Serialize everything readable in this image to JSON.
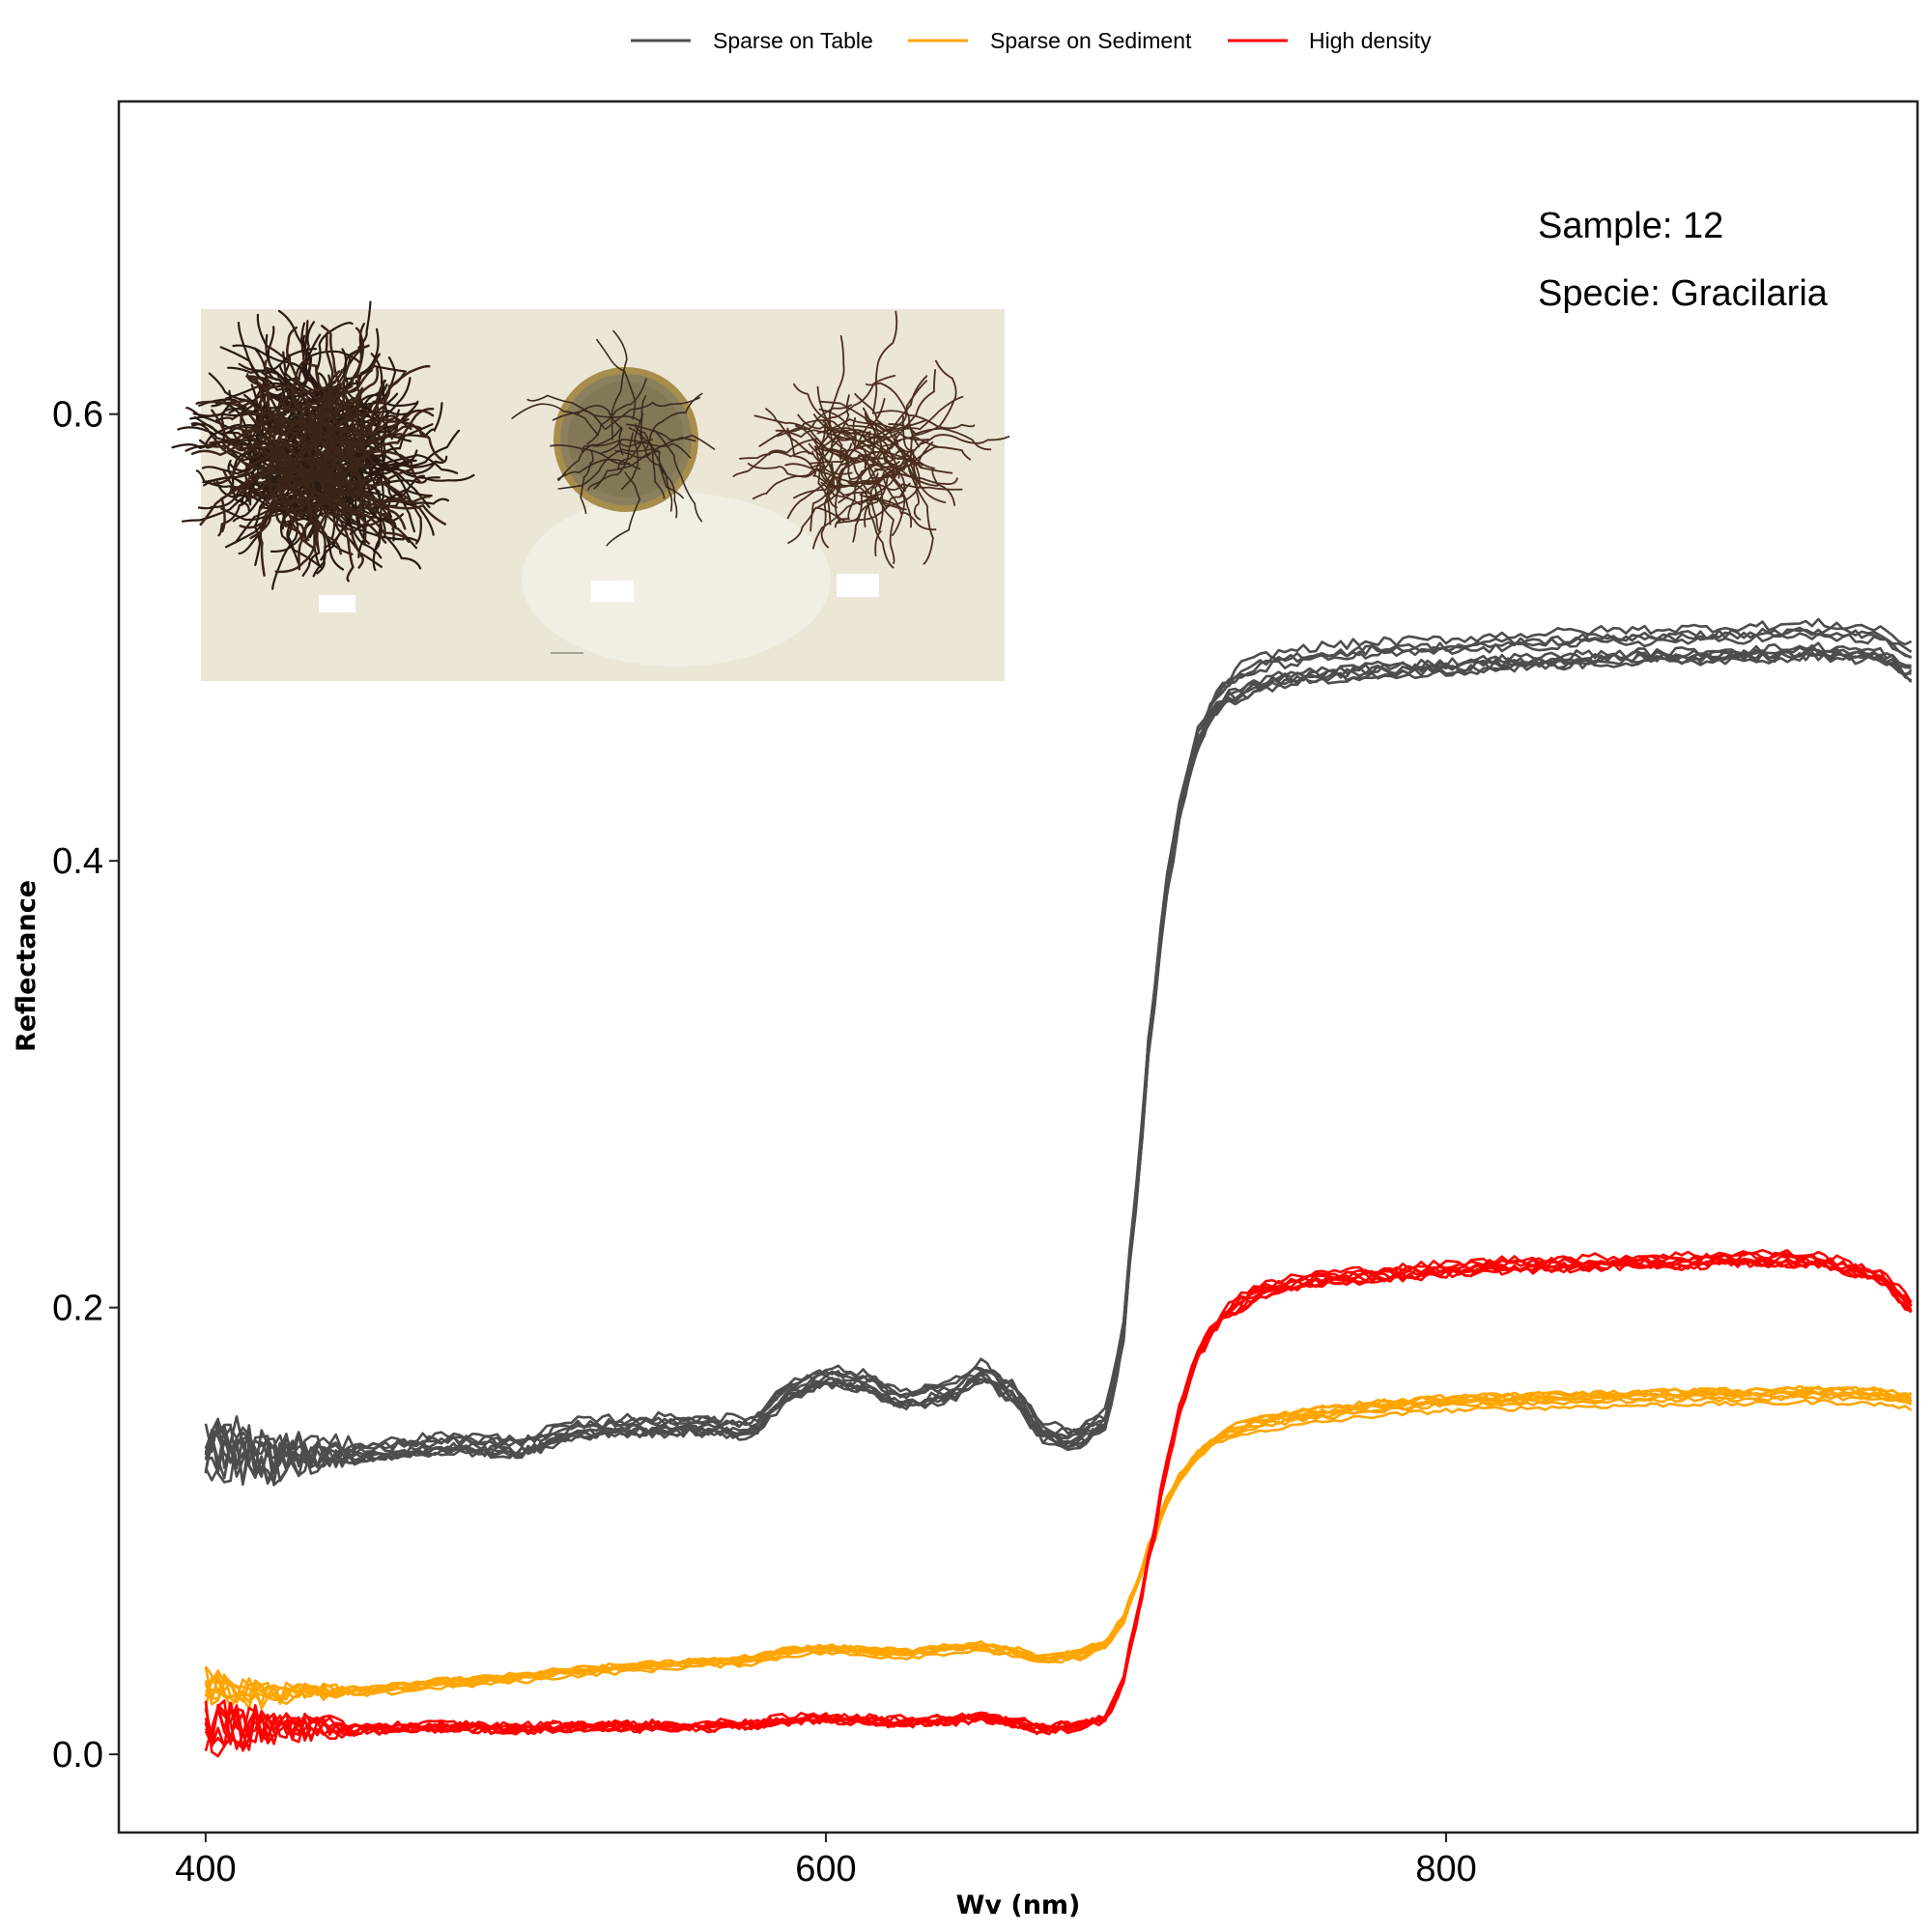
{
  "chart_data": {
    "type": "line",
    "title": "",
    "xlabel": "Wv (nm)",
    "ylabel": "Reflectance",
    "xlim": [
      372,
      952
    ],
    "ylim": [
      -0.035,
      0.74
    ],
    "x_ticks": [
      400,
      600,
      800
    ],
    "y_ticks": [
      0.0,
      0.2,
      0.4,
      0.6
    ],
    "grid": false,
    "legend_position": "top",
    "legend": [
      {
        "name": "Sparse on Table",
        "color": "#4d4d4d"
      },
      {
        "name": "Sparse on Sediment",
        "color": "#ffa500"
      },
      {
        "name": "High density",
        "color": "#ff0000"
      }
    ],
    "annotations": [
      "Sample: 12",
      "Specie: Gracilaria"
    ],
    "inset_photo": {
      "description_shown": false,
      "labels": []
    },
    "x_sample": [
      400,
      420,
      450,
      480,
      500,
      520,
      540,
      560,
      575,
      590,
      600,
      610,
      625,
      640,
      650,
      660,
      670,
      680,
      690,
      695,
      700,
      705,
      710,
      715,
      720,
      725,
      730,
      735,
      740,
      745,
      750,
      760,
      780,
      800,
      820,
      850,
      880,
      900,
      920,
      940,
      950
    ],
    "series": [
      {
        "name": "Sparse on Table",
        "color": "#4d4d4d",
        "replicates": 10,
        "spread": [
          0.012,
          0.012,
          0.012
        ],
        "noise": 0.006,
        "values": [
          0.14,
          0.134,
          0.136,
          0.14,
          0.138,
          0.146,
          0.148,
          0.148,
          0.147,
          0.165,
          0.17,
          0.168,
          0.16,
          0.163,
          0.172,
          0.163,
          0.145,
          0.142,
          0.15,
          0.18,
          0.25,
          0.33,
          0.39,
          0.43,
          0.455,
          0.47,
          0.478,
          0.482,
          0.485,
          0.487,
          0.488,
          0.49,
          0.492,
          0.493,
          0.495,
          0.497,
          0.498,
          0.499,
          0.5,
          0.498,
          0.49
        ]
      },
      {
        "name": "Sparse on Sediment",
        "color": "#ffa500",
        "replicates": 8,
        "spread": [
          0.004,
          0.004,
          0.004
        ],
        "noise": 0.003,
        "values": [
          0.03,
          0.027,
          0.028,
          0.032,
          0.034,
          0.037,
          0.039,
          0.041,
          0.042,
          0.046,
          0.047,
          0.046,
          0.045,
          0.047,
          0.048,
          0.046,
          0.042,
          0.044,
          0.049,
          0.058,
          0.075,
          0.095,
          0.113,
          0.126,
          0.134,
          0.14,
          0.144,
          0.146,
          0.148,
          0.149,
          0.15,
          0.152,
          0.155,
          0.157,
          0.158,
          0.159,
          0.16,
          0.16,
          0.161,
          0.16,
          0.158
        ]
      },
      {
        "name": "High density",
        "color": "#ff0000",
        "replicates": 8,
        "spread": [
          0.004,
          0.006,
          0.004
        ],
        "noise": 0.005,
        "values": [
          0.012,
          0.013,
          0.012,
          0.013,
          0.012,
          0.013,
          0.013,
          0.013,
          0.014,
          0.016,
          0.017,
          0.016,
          0.015,
          0.016,
          0.017,
          0.015,
          0.012,
          0.013,
          0.017,
          0.03,
          0.06,
          0.095,
          0.13,
          0.16,
          0.18,
          0.192,
          0.2,
          0.205,
          0.208,
          0.21,
          0.212,
          0.214,
          0.216,
          0.218,
          0.22,
          0.221,
          0.222,
          0.223,
          0.222,
          0.215,
          0.202
        ]
      }
    ]
  }
}
